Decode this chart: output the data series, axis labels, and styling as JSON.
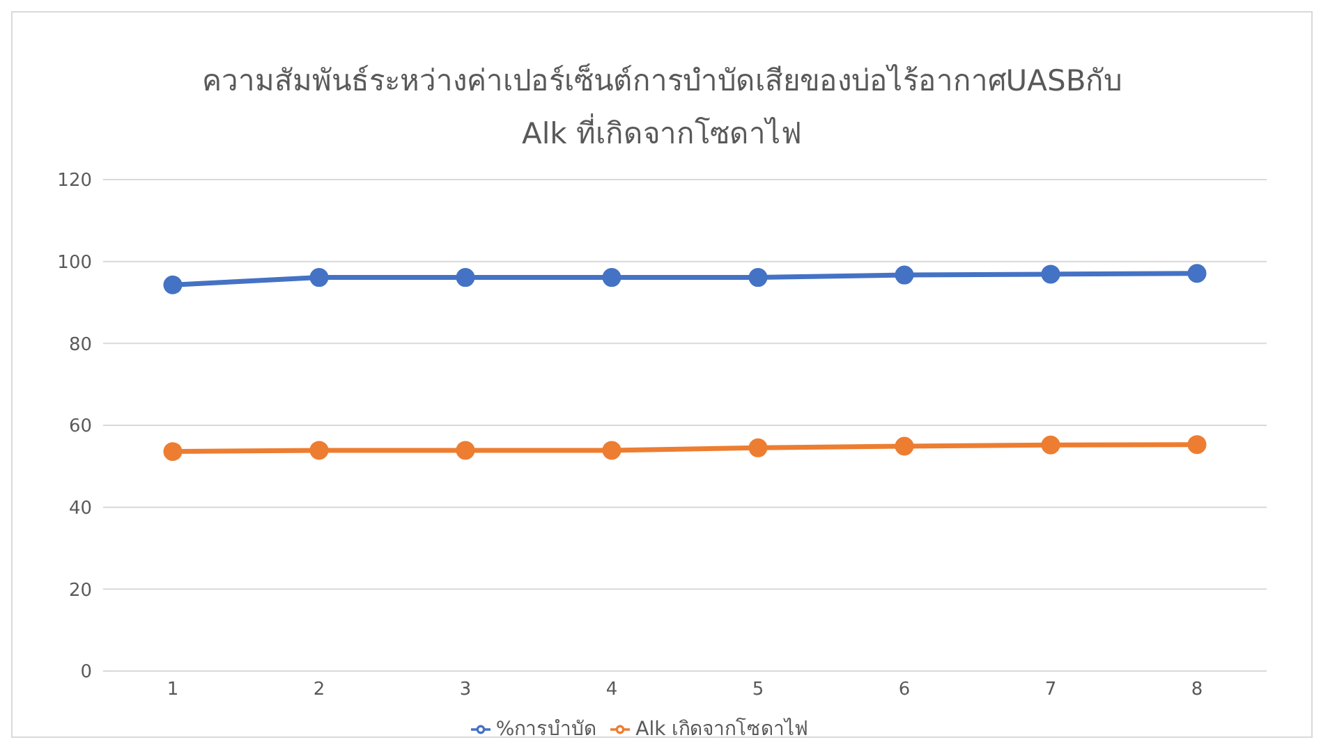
{
  "chart_data": {
    "type": "line",
    "title": "ความสัมพันธ์ระหว่างค่าเปอร์เซ็นต์การบำบัดเสียของบ่อไร้อากาศUASBกับ Alk ที่เกิดจากโซดาไฟ",
    "categories": [
      "1",
      "2",
      "3",
      "4",
      "5",
      "6",
      "7",
      "8"
    ],
    "series": [
      {
        "name": "%การบำบัด",
        "color": "#4472c4",
        "values": [
          94.3,
          96.1,
          96.1,
          96.1,
          96.1,
          96.7,
          96.9,
          97.1
        ]
      },
      {
        "name": "Alk เกิดจากโซดาไฟ",
        "color": "#ed7d31",
        "values": [
          53.6,
          53.9,
          53.9,
          53.9,
          54.5,
          54.9,
          55.2,
          55.3
        ]
      }
    ],
    "ylim": [
      0,
      120
    ],
    "yticks": [
      0,
      20,
      40,
      60,
      80,
      100,
      120
    ],
    "grid": "y",
    "legend": "bottom",
    "marker": "circle",
    "line_style": "solid"
  }
}
